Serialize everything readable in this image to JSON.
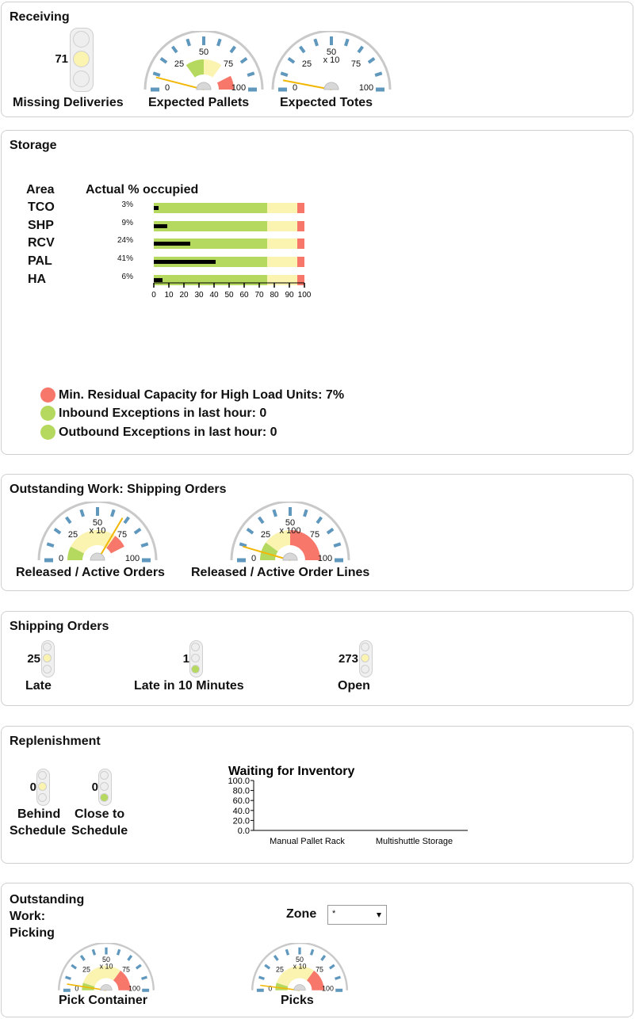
{
  "receiving": {
    "title": "Receiving",
    "missing_deliveries": {
      "value": "71",
      "label": "Missing Deliveries",
      "lit": "middle"
    },
    "expected_pallets": {
      "label": "Expected Pallets",
      "multiplier": "",
      "ticks": [
        "0",
        "25",
        "50",
        "75",
        "100"
      ],
      "needle_value": 8,
      "bands": [
        {
          "from": 30,
          "to": 50,
          "color": "#b5d95f"
        },
        {
          "from": 50,
          "to": 70,
          "color": "#fbf3b0"
        },
        {
          "from": 85,
          "to": 100,
          "color": "#f7776b"
        }
      ]
    },
    "expected_totes": {
      "label": "Expected Totes",
      "multiplier": "x 10",
      "ticks": [
        "0",
        "25",
        "50",
        "75",
        "100"
      ],
      "needle_value": 6,
      "bands": []
    }
  },
  "storage": {
    "title": "Storage",
    "col_area": "Area",
    "col_actual": "Actual % occupied",
    "rows": [
      {
        "area": "TCO",
        "pct_label": "3%",
        "value": 3
      },
      {
        "area": "SHP",
        "pct_label": "9%",
        "value": 9
      },
      {
        "area": "RCV",
        "pct_label": "24%",
        "value": 24
      },
      {
        "area": "PAL",
        "pct_label": "41%",
        "value": 41
      },
      {
        "area": "HA",
        "pct_label": "6%",
        "value": 6
      }
    ],
    "bar_bands": [
      {
        "to": 75,
        "color": "#b5d95f"
      },
      {
        "to": 95,
        "color": "#fbf3b0"
      },
      {
        "to": 100,
        "color": "#f7776b"
      }
    ],
    "axis_ticks": [
      "0",
      "10",
      "20",
      "30",
      "40",
      "50",
      "60",
      "70",
      "80",
      "90",
      "100"
    ],
    "status": [
      {
        "text": "Min. Residual Capacity for High Load Units: 7%",
        "color": "#f7776b"
      },
      {
        "text": "Inbound Exceptions in last hour: 0",
        "color": "#b5d95f"
      },
      {
        "text": "Outbound Exceptions in last hour: 0",
        "color": "#b5d95f"
      }
    ]
  },
  "outstanding_shipping": {
    "title": "Outstanding Work: Shipping Orders",
    "released_orders": {
      "label": "Released / Active Orders",
      "multiplier": "x 10",
      "ticks": [
        "0",
        "25",
        "50",
        "75",
        "100"
      ],
      "needle_value": 67,
      "bands": [
        {
          "from": 0,
          "to": 15,
          "color": "#b5d95f"
        },
        {
          "from": 15,
          "to": 70,
          "color": "#fbf3b0"
        },
        {
          "from": 70,
          "to": 85,
          "color": "#f7776b"
        }
      ]
    },
    "released_lines": {
      "label": "Released / Active Order Lines",
      "multiplier": "x 100",
      "ticks": [
        "0",
        "25",
        "50",
        "75",
        "100"
      ],
      "needle_value": 9,
      "bands": [
        {
          "from": 0,
          "to": 20,
          "color": "#b5d95f"
        },
        {
          "from": 20,
          "to": 50,
          "color": "#fbf3b0"
        },
        {
          "from": 50,
          "to": 100,
          "color": "#f7776b"
        }
      ]
    }
  },
  "shipping_orders": {
    "title": "Shipping Orders",
    "late": {
      "value": "25",
      "label": "Late",
      "lit": "middle"
    },
    "late10": {
      "value": "1",
      "label": "Late in 10 Minutes",
      "lit": "bottom"
    },
    "open": {
      "value": "273",
      "label": "Open",
      "lit": "middle"
    }
  },
  "replenishment": {
    "title": "Replenishment",
    "behind": {
      "value": "0",
      "label_line1": "Behind",
      "label_line2": "Schedule",
      "lit": "middle"
    },
    "close": {
      "value": "0",
      "label_line1": "Close to",
      "label_line2": "Schedule",
      "lit": "bottom"
    },
    "chart_data": {
      "type": "bar",
      "title": "Waiting for Inventory",
      "categories": [
        "Manual Pallet Rack",
        "Multishuttle Storage"
      ],
      "values": [
        0,
        0
      ],
      "ylim": [
        0,
        100
      ],
      "y_ticks": [
        "100.0",
        "80.0",
        "60.0",
        "40.0",
        "20.0",
        "0.0"
      ]
    }
  },
  "picking": {
    "title_line1": "Outstanding",
    "title_line2": "Work:",
    "title_line3": "Picking",
    "zone_label": "Zone",
    "zone_value": "*",
    "pick_container": {
      "label": "Pick Container",
      "multiplier": "x 10",
      "ticks": [
        "0",
        "25",
        "50",
        "75",
        "100"
      ],
      "needle_value": 5,
      "bands": [
        {
          "from": 0,
          "to": 10,
          "color": "#b5d95f"
        },
        {
          "from": 10,
          "to": 70,
          "color": "#fbf3b0"
        },
        {
          "from": 70,
          "to": 100,
          "color": "#f7776b"
        }
      ]
    },
    "picks": {
      "label": "Picks",
      "multiplier": "x 10",
      "ticks": [
        "0",
        "25",
        "50",
        "75",
        "100"
      ],
      "needle_value": 4,
      "bands": [
        {
          "from": 0,
          "to": 10,
          "color": "#b5d95f"
        },
        {
          "from": 10,
          "to": 70,
          "color": "#fbf3b0"
        },
        {
          "from": 70,
          "to": 100,
          "color": "#f7776b"
        }
      ]
    }
  },
  "colors": {
    "green": "#b5d95f",
    "yellow": "#fbf3b0",
    "red": "#f7776b",
    "needle": "#f2b705",
    "tick": "#5f97bd"
  },
  "icons": {
    "dropdown": "triangle-down-icon",
    "status": "circle-icon",
    "traffic_light": "traffic-light-icon"
  }
}
